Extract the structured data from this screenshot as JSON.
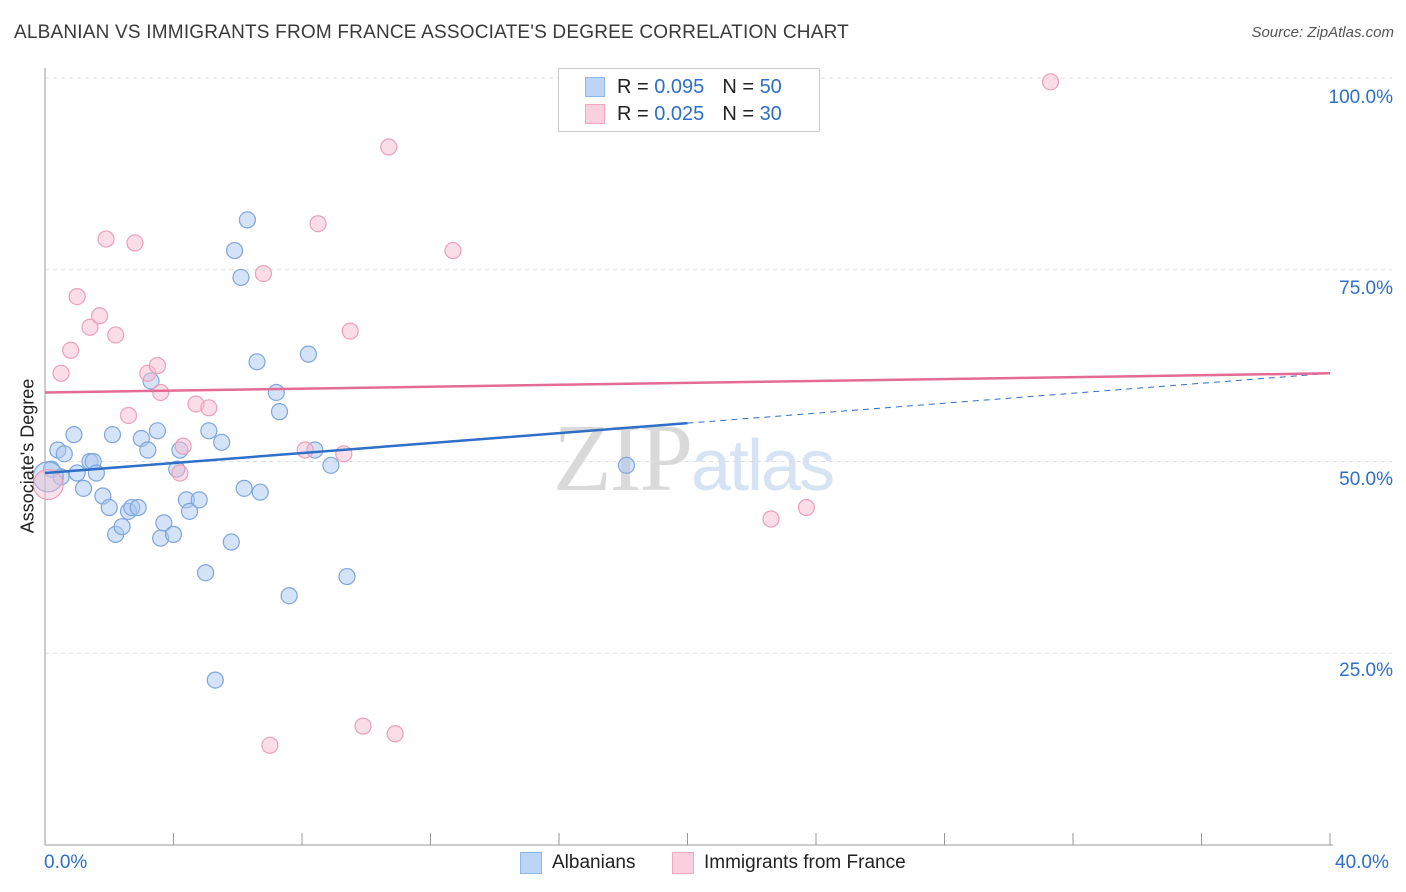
{
  "title": "ALBANIAN VS IMMIGRANTS FROM FRANCE ASSOCIATE'S DEGREE CORRELATION CHART",
  "source": "Source: ZipAtlas.com",
  "watermark": {
    "zip": "ZIP",
    "atlas": "atlas"
  },
  "legend": {
    "rows": [
      {
        "r_label": "R = ",
        "r_value": "0.095",
        "n_label": "N = ",
        "n_value": "50",
        "color": "#8fb6ea",
        "fill": "#bcd4f5"
      },
      {
        "r_label": "R = ",
        "r_value": "0.025",
        "n_label": "N = ",
        "n_value": "30",
        "color": "#f0a7bf",
        "fill": "#fbd0de"
      }
    ]
  },
  "bottom_legend": {
    "series1": "Albanians",
    "series2": "Immigrants from France"
  },
  "axes": {
    "ylabel": "Associate's Degree",
    "y_ticks": [
      "100.0%",
      "75.0%",
      "50.0%",
      "25.0%"
    ],
    "x_min_label": "0.0%",
    "x_max_label": "40.0%"
  },
  "chart_data": {
    "type": "scatter",
    "title": "ALBANIAN VS IMMIGRANTS FROM FRANCE ASSOCIATE'S DEGREE CORRELATION CHART",
    "xlabel": "",
    "ylabel": "Associate's Degree",
    "xlim": [
      0,
      40
    ],
    "ylim": [
      0,
      100
    ],
    "y_ticks": [
      25,
      50,
      75,
      100
    ],
    "grid": true,
    "legend_placement": "top-center",
    "series": [
      {
        "name": "Albanians",
        "color": "#2e6fc7",
        "point_color": "#a9c7ef",
        "trend": {
          "x0": 0,
          "y0": 48.5,
          "x1": 20,
          "y1": 55.0,
          "dash_x1": 40,
          "dash_y1": 61.5
        },
        "points": [
          [
            0.2,
            49.0
          ],
          [
            0.4,
            51.5
          ],
          [
            0.5,
            48.0
          ],
          [
            0.6,
            51.0
          ],
          [
            0.9,
            53.5
          ],
          [
            1.0,
            48.5
          ],
          [
            1.2,
            46.5
          ],
          [
            1.4,
            50.0
          ],
          [
            1.5,
            50.0
          ],
          [
            1.6,
            48.5
          ],
          [
            1.8,
            45.5
          ],
          [
            2.0,
            44.0
          ],
          [
            2.1,
            53.5
          ],
          [
            2.2,
            40.5
          ],
          [
            2.4,
            41.5
          ],
          [
            2.6,
            43.5
          ],
          [
            2.7,
            44.0
          ],
          [
            2.9,
            44.0
          ],
          [
            3.0,
            53.0
          ],
          [
            3.2,
            51.5
          ],
          [
            3.3,
            60.5
          ],
          [
            3.5,
            54.0
          ],
          [
            3.6,
            40.0
          ],
          [
            3.7,
            42.0
          ],
          [
            4.0,
            40.5
          ],
          [
            4.1,
            49.0
          ],
          [
            4.2,
            51.5
          ],
          [
            4.4,
            45.0
          ],
          [
            4.5,
            43.5
          ],
          [
            4.8,
            45.0
          ],
          [
            5.0,
            35.5
          ],
          [
            5.1,
            54.0
          ],
          [
            5.3,
            21.5
          ],
          [
            5.5,
            52.5
          ],
          [
            5.8,
            39.5
          ],
          [
            5.9,
            77.5
          ],
          [
            6.1,
            74.0
          ],
          [
            6.2,
            46.5
          ],
          [
            6.3,
            81.5
          ],
          [
            6.6,
            63.0
          ],
          [
            6.7,
            46.0
          ],
          [
            7.2,
            59.0
          ],
          [
            7.3,
            56.5
          ],
          [
            7.6,
            32.5
          ],
          [
            8.2,
            64.0
          ],
          [
            8.4,
            51.5
          ],
          [
            8.9,
            49.5
          ],
          [
            9.4,
            35.0
          ],
          [
            18.1,
            49.5
          ],
          [
            0.1,
            48.0
          ]
        ]
      },
      {
        "name": "Immigrants from France",
        "color": "#e36b96",
        "point_color": "#f7bcd0",
        "trend": {
          "x0": 0,
          "y0": 59.0,
          "x1": 40,
          "y1": 61.5
        },
        "points": [
          [
            0.1,
            47.0
          ],
          [
            0.5,
            61.5
          ],
          [
            0.8,
            64.5
          ],
          [
            1.0,
            71.5
          ],
          [
            1.4,
            67.5
          ],
          [
            1.7,
            69.0
          ],
          [
            1.9,
            79.0
          ],
          [
            2.2,
            66.5
          ],
          [
            2.6,
            56.0
          ],
          [
            2.8,
            78.5
          ],
          [
            3.2,
            61.5
          ],
          [
            3.5,
            62.5
          ],
          [
            3.6,
            59.0
          ],
          [
            4.2,
            48.5
          ],
          [
            4.3,
            52.0
          ],
          [
            4.7,
            57.5
          ],
          [
            5.1,
            57.0
          ],
          [
            6.8,
            74.5
          ],
          [
            7.0,
            13.0
          ],
          [
            8.1,
            51.5
          ],
          [
            8.5,
            81.0
          ],
          [
            9.3,
            51.0
          ],
          [
            9.5,
            67.0
          ],
          [
            9.9,
            15.5
          ],
          [
            10.7,
            91.0
          ],
          [
            10.9,
            14.5
          ],
          [
            12.7,
            77.5
          ],
          [
            22.6,
            42.5
          ],
          [
            23.7,
            44.0
          ],
          [
            31.3,
            99.5
          ]
        ]
      }
    ]
  }
}
